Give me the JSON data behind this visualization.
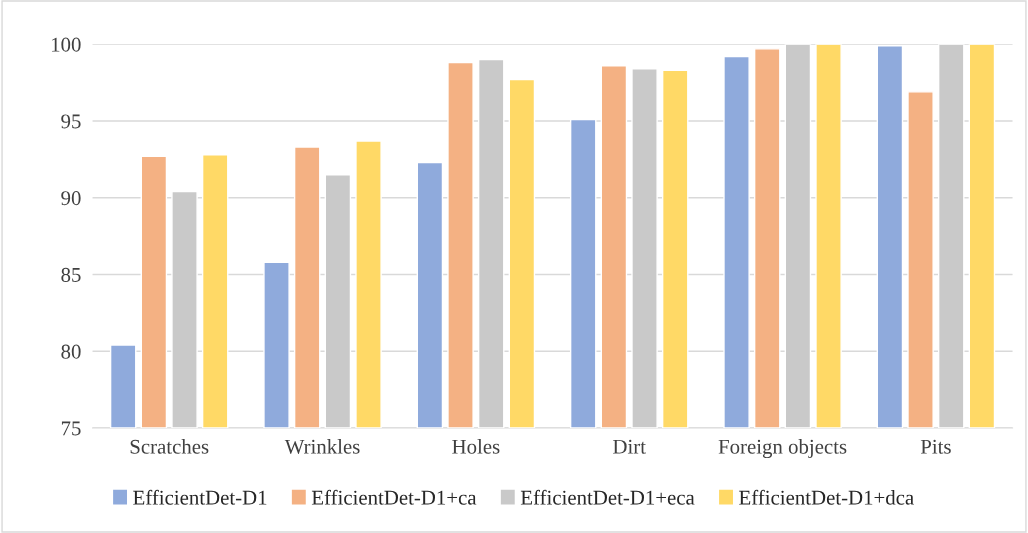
{
  "chart_data": {
    "type": "bar",
    "categories": [
      "Scratches",
      "Wrinkles",
      "Holes",
      "Dirt",
      "Foreign objects",
      "Pits"
    ],
    "series": [
      {
        "name": "EfficientDet-D1",
        "color": "#8faadc",
        "values": [
          80.4,
          85.8,
          92.3,
          95.1,
          99.2,
          99.9
        ]
      },
      {
        "name": "EfficientDet-D1+ca",
        "color": "#f4b183",
        "values": [
          92.7,
          93.3,
          98.8,
          98.6,
          99.7,
          96.9
        ]
      },
      {
        "name": "EfficientDet-D1+eca",
        "color": "#c9c9c9",
        "values": [
          90.4,
          91.5,
          99.0,
          98.4,
          100,
          100
        ]
      },
      {
        "name": "EfficientDet-D1+dca",
        "color": "#ffd966",
        "values": [
          92.8,
          93.7,
          97.7,
          98.3,
          100,
          100
        ]
      }
    ],
    "ylim": [
      75,
      100
    ],
    "yticks": [
      75,
      80,
      85,
      90,
      95,
      100
    ],
    "grid": "y",
    "legend": "bottom"
  }
}
